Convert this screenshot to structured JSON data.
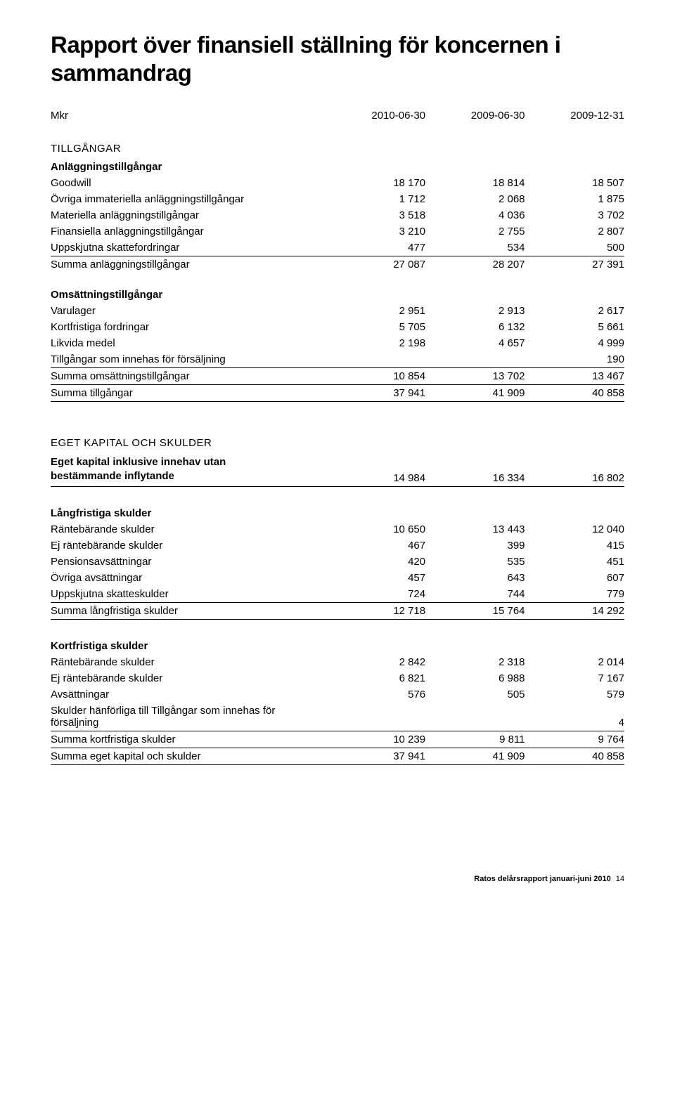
{
  "title": "Rapport över finansiell ställning för koncernen i sammandrag",
  "header": {
    "unit": "Mkr",
    "periods": [
      "2010-06-30",
      "2009-06-30",
      "2009-12-31"
    ]
  },
  "sections": {
    "tillgangar": {
      "heading": "TILLGÅNGAR",
      "anlaggning": {
        "heading": "Anläggningstillgångar",
        "rows": [
          {
            "label": "Goodwill",
            "v": [
              "18 170",
              "18 814",
              "18 507"
            ]
          },
          {
            "label": "Övriga immateriella anläggningstillgångar",
            "v": [
              "1 712",
              "2 068",
              "1 875"
            ]
          },
          {
            "label": "Materiella anläggningstillgångar",
            "v": [
              "3 518",
              "4 036",
              "3 702"
            ]
          },
          {
            "label": "Finansiella anläggningstillgångar",
            "v": [
              "3 210",
              "2 755",
              "2 807"
            ]
          },
          {
            "label": "Uppskjutna skattefordringar",
            "v": [
              "477",
              "534",
              "500"
            ]
          }
        ],
        "sum": {
          "label": "Summa anläggningstillgångar",
          "v": [
            "27 087",
            "28 207",
            "27 391"
          ]
        }
      },
      "omsattning": {
        "heading": "Omsättningstillgångar",
        "rows": [
          {
            "label": "Varulager",
            "v": [
              "2 951",
              "2 913",
              "2 617"
            ]
          },
          {
            "label": "Kortfristiga fordringar",
            "v": [
              "5 705",
              "6 132",
              "5 661"
            ]
          },
          {
            "label": "Likvida medel",
            "v": [
              "2 198",
              "4 657",
              "4 999"
            ]
          },
          {
            "label": "Tillgångar som innehas för försäljning",
            "v": [
              "",
              "",
              "190"
            ]
          }
        ],
        "sum": {
          "label": "Summa omsättningstillgångar",
          "v": [
            "10 854",
            "13 702",
            "13 467"
          ]
        }
      },
      "total": {
        "label": "Summa tillgångar",
        "v": [
          "37 941",
          "41 909",
          "40 858"
        ]
      }
    },
    "ek_skulder": {
      "heading": "EGET KAPITAL OCH SKULDER",
      "eget": {
        "label_line1": "Eget kapital inklusive innehav utan",
        "label_line2": "bestämmande inflytande",
        "v": [
          "14 984",
          "16 334",
          "16 802"
        ]
      },
      "langfristiga": {
        "heading": "Långfristiga skulder",
        "rows": [
          {
            "label": "Räntebärande skulder",
            "v": [
              "10 650",
              "13 443",
              "12 040"
            ]
          },
          {
            "label": "Ej räntebärande skulder",
            "v": [
              "467",
              "399",
              "415"
            ]
          },
          {
            "label": "Pensionsavsättningar",
            "v": [
              "420",
              "535",
              "451"
            ]
          },
          {
            "label": "Övriga avsättningar",
            "v": [
              "457",
              "643",
              "607"
            ]
          },
          {
            "label": "Uppskjutna skatteskulder",
            "v": [
              "724",
              "744",
              "779"
            ]
          }
        ],
        "sum": {
          "label": "Summa långfristiga skulder",
          "v": [
            "12 718",
            "15 764",
            "14 292"
          ]
        }
      },
      "kortfristiga": {
        "heading": "Kortfristiga skulder",
        "rows": [
          {
            "label": "Räntebärande skulder",
            "v": [
              "2 842",
              "2 318",
              "2 014"
            ]
          },
          {
            "label": "Ej räntebärande skulder",
            "v": [
              "6 821",
              "6 988",
              "7 167"
            ]
          },
          {
            "label": "Avsättningar",
            "v": [
              "576",
              "505",
              "579"
            ]
          },
          {
            "label": "Skulder hänförliga till Tillgångar som innehas för försäljning",
            "v": [
              "",
              "",
              "4"
            ]
          }
        ],
        "sum": {
          "label": "Summa kortfristiga skulder",
          "v": [
            "10 239",
            "9 811",
            "9 764"
          ]
        }
      },
      "total": {
        "label": "Summa eget kapital och skulder",
        "v": [
          "37 941",
          "41 909",
          "40 858"
        ]
      }
    }
  },
  "footer": {
    "text": "Ratos delårsrapport januari-juni 2010",
    "page": "14"
  }
}
